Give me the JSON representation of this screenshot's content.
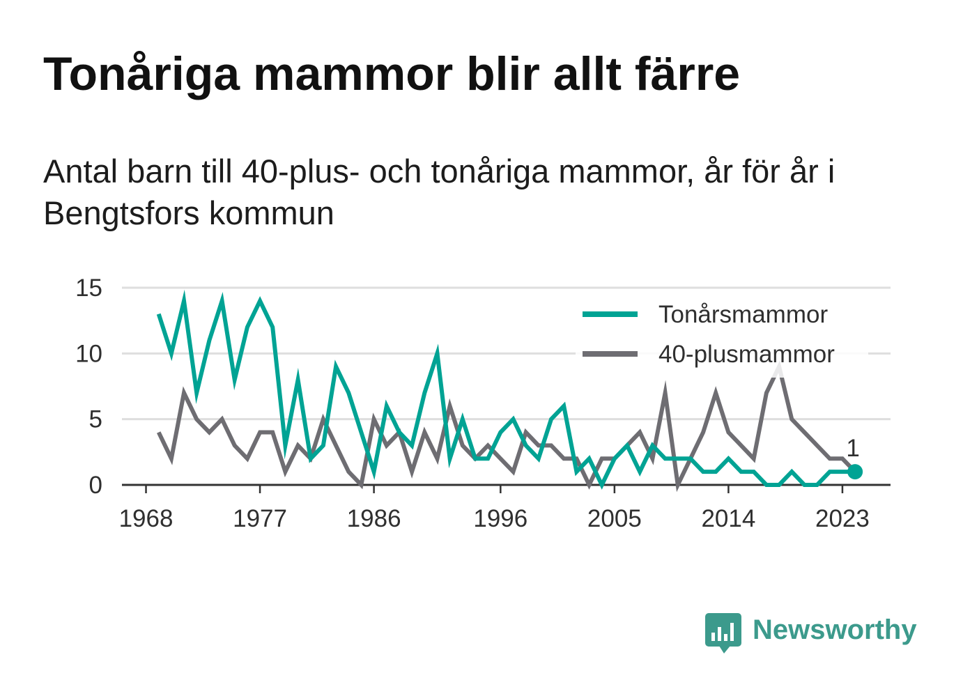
{
  "title": "Tonåriga mammor blir allt färre",
  "subtitle": "Antal barn till 40-plus- och tonåriga mammor, år för år i Bengtsfors kommun",
  "chart_data": {
    "type": "line",
    "x": [
      1969,
      1970,
      1971,
      1972,
      1973,
      1974,
      1975,
      1976,
      1977,
      1978,
      1979,
      1980,
      1981,
      1982,
      1983,
      1984,
      1985,
      1986,
      1987,
      1988,
      1989,
      1990,
      1991,
      1992,
      1993,
      1994,
      1995,
      1996,
      1997,
      1998,
      1999,
      2000,
      2001,
      2002,
      2003,
      2004,
      2005,
      2006,
      2007,
      2008,
      2009,
      2010,
      2011,
      2012,
      2013,
      2014,
      2015,
      2016,
      2017,
      2018,
      2019,
      2020,
      2021,
      2022,
      2023,
      2024
    ],
    "series": [
      {
        "name": "Tonårsmammor",
        "color": "#00a394",
        "values": [
          13,
          10,
          14,
          7,
          11,
          14,
          8,
          12,
          14,
          12,
          3,
          8,
          2,
          3,
          9,
          7,
          4,
          1,
          6,
          4,
          3,
          7,
          10,
          2,
          5,
          2,
          2,
          4,
          5,
          3,
          2,
          5,
          6,
          1,
          2,
          0,
          2,
          3,
          1,
          3,
          2,
          2,
          2,
          1,
          1,
          2,
          1,
          1,
          0,
          0,
          1,
          0,
          0,
          1,
          1,
          1
        ]
      },
      {
        "name": "40-plusmammor",
        "color": "#6e6d72",
        "values": [
          4,
          2,
          7,
          5,
          4,
          5,
          3,
          2,
          4,
          4,
          1,
          3,
          2,
          5,
          3,
          1,
          0,
          5,
          3,
          4,
          1,
          4,
          2,
          6,
          3,
          2,
          3,
          2,
          1,
          4,
          3,
          3,
          2,
          2,
          0,
          2,
          2,
          3,
          4,
          2,
          7,
          0,
          2,
          4,
          7,
          4,
          3,
          2,
          7,
          9,
          5,
          4,
          3,
          2,
          2,
          1
        ]
      }
    ],
    "xticks": [
      1968,
      1977,
      1986,
      1996,
      2005,
      2014,
      2023
    ],
    "yticks": [
      0,
      5,
      10,
      15
    ],
    "xlim": [
      1966.1,
      2026.8
    ],
    "ylim": [
      0,
      15
    ],
    "grid": true,
    "legend": "top-right",
    "annotations": [
      {
        "series": "Tonårsmammor",
        "x": 2024,
        "y": 1,
        "text": "1"
      }
    ]
  },
  "logo": {
    "text": "Newsworthy",
    "icon": "newsworthy-logo-icon",
    "color": "#3c9a8c"
  }
}
